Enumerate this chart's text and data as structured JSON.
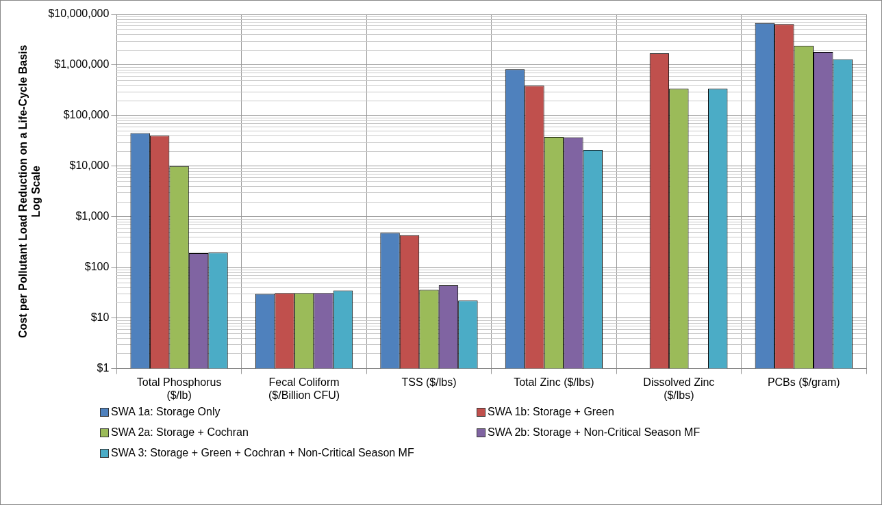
{
  "chart_data": {
    "type": "bar",
    "ylabel": "Cost per Pollutant Load Reduction on a Life-Cycle Basis\nLog Scale",
    "categories": [
      "Total Phosphorus\n($/lb)",
      "Fecal Coliform\n($/Billion CFU)",
      "TSS ($/lbs)",
      "Total Zinc ($/lbs)",
      "Dissolved Zinc\n($/lbs)",
      "PCBs ($/gram)"
    ],
    "series": [
      {
        "name": "SWA 1a: Storage Only",
        "color": "#4f81bd",
        "values": [
          45000,
          30,
          480,
          820000,
          null,
          6700000
        ]
      },
      {
        "name": "SWA 1b: Storage + Green",
        "color": "#c0504d",
        "values": [
          40000,
          31,
          430,
          390000,
          1700000,
          6400000
        ]
      },
      {
        "name": "SWA 2a: Storage + Cochran",
        "color": "#9bbb59",
        "values": [
          10000,
          31,
          36,
          38000,
          340000,
          2400000
        ]
      },
      {
        "name": "SWA 2b: Storage + Non-Critical Season MF",
        "color": "#8064a2",
        "values": [
          190,
          31,
          44,
          37000,
          null,
          1800000
        ]
      },
      {
        "name": "SWA 3: Storage + Green + Cochran + Non-Critical Season MF",
        "color": "#4bacc6",
        "values": [
          195,
          35,
          22,
          21000,
          340000,
          1300000
        ]
      }
    ],
    "log": "y",
    "ylim": [
      1,
      10000000
    ],
    "yticks": [
      {
        "value": 1,
        "label": "$1"
      },
      {
        "value": 10,
        "label": "$10"
      },
      {
        "value": 100,
        "label": "$100"
      },
      {
        "value": 1000,
        "label": "$1,000"
      },
      {
        "value": 10000,
        "label": "$10,000"
      },
      {
        "value": 100000,
        "label": "$100,000"
      },
      {
        "value": 1000000,
        "label": "$1,000,000"
      },
      {
        "value": 10000000,
        "label": "$10,000,000"
      }
    ],
    "grid": true,
    "legend": "bottom"
  }
}
